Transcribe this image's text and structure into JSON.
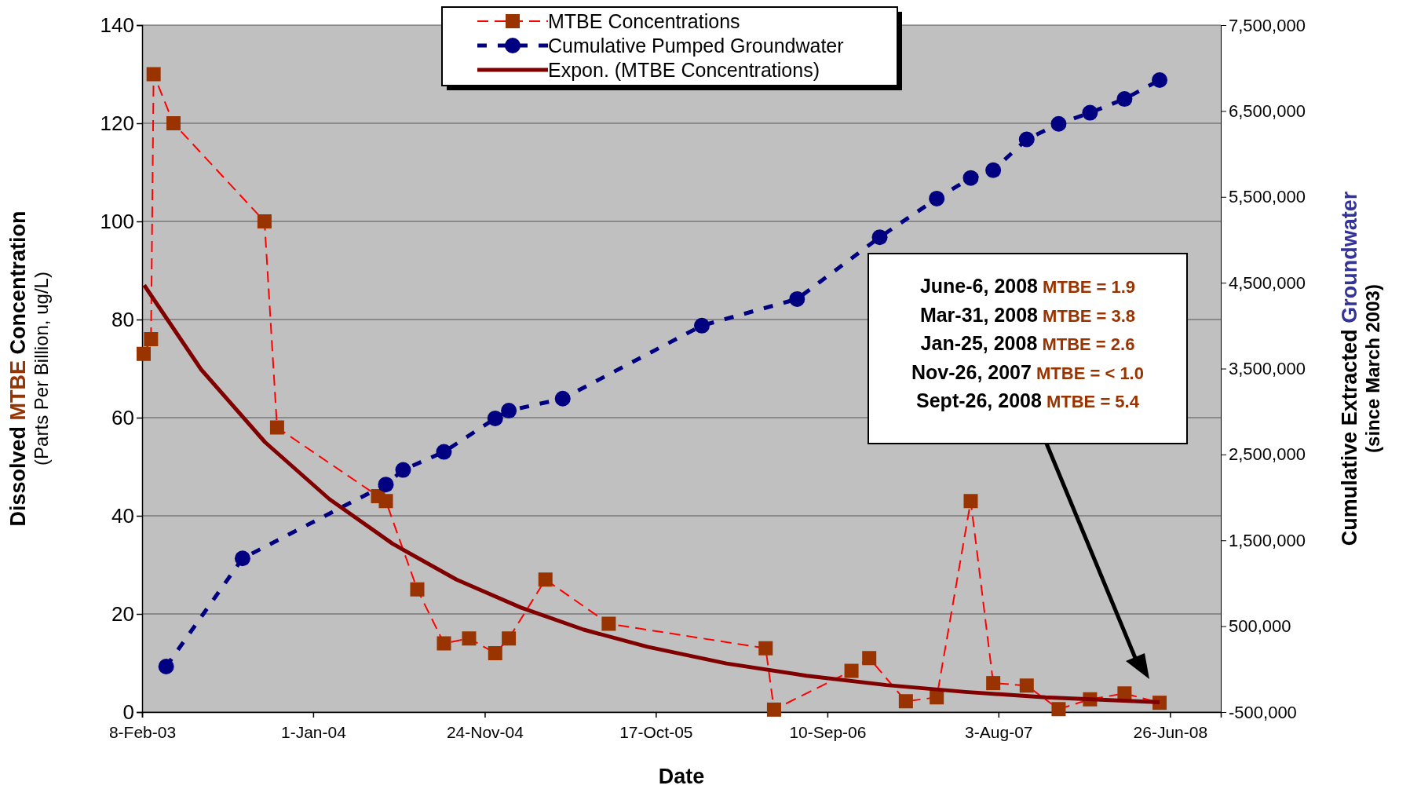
{
  "chart_data": {
    "type": "line",
    "xlabel": "Date",
    "ylabel": "Dissolved MTBE Concentration\n(Parts Per Billion, ug/L)",
    "y2label": "Cumulative Extracted Groundwater\n(since March 2003)",
    "xlim": [
      "2003-02-08",
      "2008-10-01"
    ],
    "xticks": [
      {
        "value": "2003-02-08",
        "label": "8-Feb-03"
      },
      {
        "value": "2004-01-01",
        "label": "1-Jan-04"
      },
      {
        "value": "2004-11-24",
        "label": "24-Nov-04"
      },
      {
        "value": "2005-10-17",
        "label": "17-Oct-05"
      },
      {
        "value": "2006-09-10",
        "label": "10-Sep-06"
      },
      {
        "value": "2007-08-03",
        "label": "3-Aug-07"
      },
      {
        "value": "2008-06-26",
        "label": "26-Jun-08"
      }
    ],
    "ylim": [
      0,
      140
    ],
    "yticks": [
      0,
      20,
      40,
      60,
      80,
      100,
      120,
      140
    ],
    "y2lim": [
      -500000,
      7500000
    ],
    "y2ticks": [
      {
        "value": -500000,
        "label": "-500,000"
      },
      {
        "value": 500000,
        "label": "500,000"
      },
      {
        "value": 1500000,
        "label": "1,500,000"
      },
      {
        "value": 2500000,
        "label": "2,500,000"
      },
      {
        "value": 3500000,
        "label": "3,500,000"
      },
      {
        "value": 4500000,
        "label": "4,500,000"
      },
      {
        "value": 5500000,
        "label": "5,500,000"
      },
      {
        "value": 6500000,
        "label": "6,500,000"
      },
      {
        "value": 7500000,
        "label": "7,500,000"
      }
    ],
    "grid": "y",
    "legend": "top",
    "series": [
      {
        "name": "MTBE Concentrations",
        "color": "#993300",
        "marker": "square",
        "line_style": "dashed",
        "x": [
          "2003-02-11",
          "2003-02-25",
          "2003-03-02",
          "2003-04-09",
          "2003-09-30",
          "2003-10-24",
          "2004-05-04",
          "2004-05-19",
          "2004-07-18",
          "2004-09-07",
          "2004-10-25",
          "2004-12-14",
          "2005-01-09",
          "2005-03-20",
          "2005-07-19",
          "2006-05-15",
          "2006-05-31",
          "2006-10-26",
          "2006-11-29",
          "2007-02-07",
          "2007-04-07",
          "2007-06-11",
          "2007-07-24",
          "2007-09-26",
          "2007-11-26",
          "2008-01-25",
          "2008-03-31",
          "2008-06-06"
        ],
        "values": [
          73,
          76,
          130,
          120,
          100,
          58,
          44,
          43,
          25,
          14,
          15,
          12,
          15,
          27,
          18,
          13,
          0.5,
          8.4,
          11,
          2.2,
          3,
          43,
          5.9,
          5.4,
          0.6,
          2.6,
          3.8,
          1.9
        ]
      },
      {
        "name": "Cumulative Pumped Groundwater",
        "color": "#000080",
        "marker": "circle",
        "line_style": "dashed",
        "axis": "y2",
        "x": [
          "2003-03-26",
          "2003-08-19",
          "2004-05-19",
          "2004-06-21",
          "2004-09-07",
          "2004-12-14",
          "2005-01-09",
          "2005-04-22",
          "2006-01-13",
          "2006-07-14",
          "2006-12-19",
          "2007-04-07",
          "2007-06-11",
          "2007-07-24",
          "2007-09-26",
          "2007-11-26",
          "2008-01-25",
          "2008-03-31",
          "2008-06-06"
        ],
        "values": [
          30000,
          1290000,
          2150000,
          2320000,
          2530000,
          2920000,
          3010000,
          3150000,
          4000000,
          4310000,
          5030000,
          5480000,
          5720000,
          5810000,
          6170000,
          6350000,
          6480000,
          6640000,
          6860000
        ]
      },
      {
        "name": "Expon. (MTBE Concentrations)",
        "color": "#800000",
        "marker": "none",
        "line_style": "solid",
        "x": [
          "2003-02-12",
          "2003-06-01",
          "2003-10-01",
          "2004-02-01",
          "2004-06-01",
          "2004-10-01",
          "2005-02-01",
          "2005-06-01",
          "2005-10-01",
          "2006-03-01",
          "2006-08-01",
          "2007-01-01",
          "2007-06-01",
          "2007-11-01",
          "2008-06-06"
        ],
        "values": [
          87,
          69.8,
          55,
          43.4,
          34.3,
          27,
          21.3,
          16.8,
          13.3,
          9.9,
          7.4,
          5.5,
          4.1,
          3,
          2
        ]
      }
    ],
    "annotations": [
      "June-6, 2008",
      "MTBE = 1.9",
      "Mar-31, 2008",
      "MTBE = 3.8",
      "Jan-25, 2008",
      "MTBE = 2.6",
      "Nov-26, 2007",
      "MTBE = < 1.0",
      "Sept-26, 2008",
      "MTBE = 5.4"
    ]
  }
}
